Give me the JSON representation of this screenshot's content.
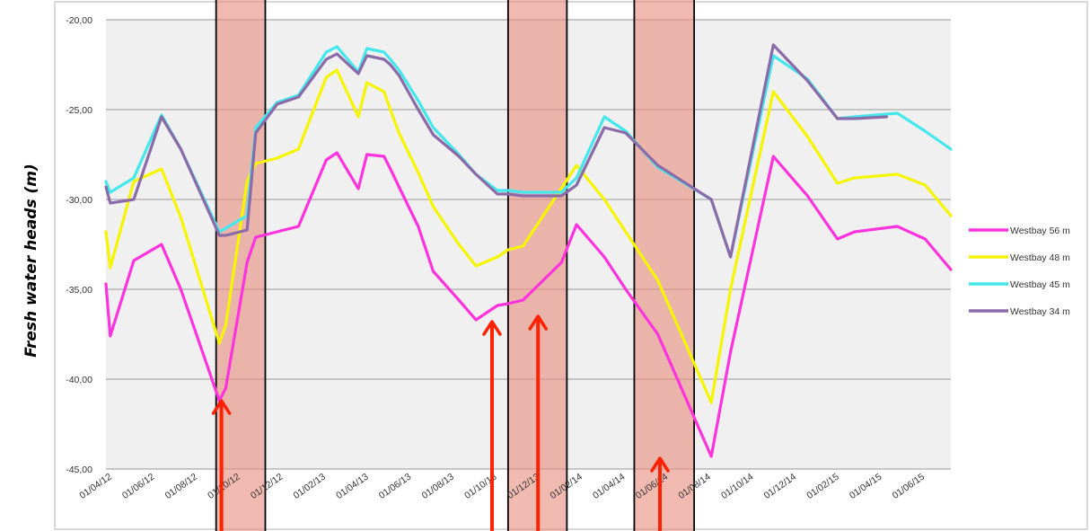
{
  "chart_data": {
    "type": "line",
    "ylabel": "Fresh water heads (m)",
    "ylim": [
      -45,
      -20
    ],
    "y_ticks": [
      "-20,00",
      "-25,00",
      "-30,00",
      "-35,00",
      "-40,00",
      "-45,00"
    ],
    "y_tick_values": [
      -20,
      -25,
      -30,
      -35,
      -40,
      -45
    ],
    "xlim": [
      0,
      39.5
    ],
    "x_tick_labels": [
      "01/04/12",
      "01/06/12",
      "01/08/12",
      "01/10/12",
      "01/12/12",
      "01/02/13",
      "01/04/13",
      "01/06/13",
      "01/08/13",
      "01/10/13",
      "01/12/13",
      "01/02/14",
      "01/04/14",
      "01/06/14",
      "01/08/14",
      "01/10/14",
      "01/12/14",
      "01/02/15",
      "01/04/15",
      "01/06/15"
    ],
    "x_tick_months": [
      0,
      2,
      4,
      6,
      8,
      10,
      12,
      14,
      16,
      18,
      20,
      22,
      24,
      26,
      28,
      30,
      32,
      34,
      36,
      38
    ],
    "grid": true,
    "legend_position": "right",
    "series": [
      {
        "name": "Westbay 56 m",
        "color": "#ff33dd",
        "x": [
          0,
          0.2,
          1.3,
          2.6,
          3.5,
          5.3,
          5.6,
          6.6,
          7.0,
          8.0,
          9.0,
          10.3,
          10.8,
          11.8,
          12.2,
          13.0,
          13.3,
          13.7,
          14.6,
          15.3,
          16.5,
          17.3,
          18.3,
          18.8,
          19.5,
          21.3,
          22.0,
          23.3,
          24.3,
          25.8,
          28.3,
          29.2,
          31.2,
          32.8,
          34.2,
          35.0,
          37.0,
          38.3,
          39.5
        ],
        "y": [
          -34.7,
          -37.6,
          -33.4,
          -32.5,
          -35.0,
          -41.2,
          -40.5,
          -33.5,
          -32.1,
          -31.8,
          -31.5,
          -27.8,
          -27.4,
          -29.4,
          -27.5,
          -27.6,
          -28.3,
          -29.3,
          -31.5,
          -34.0,
          -35.6,
          -36.7,
          -35.9,
          -35.8,
          -35.6,
          -33.5,
          -31.4,
          -33.2,
          -35.0,
          -37.5,
          -44.3,
          -38.5,
          -27.6,
          -29.8,
          -32.2,
          -31.8,
          -31.5,
          -32.2,
          -33.9
        ]
      },
      {
        "name": "Westbay 48 m",
        "color": "#f5f500",
        "x": [
          0,
          0.2,
          1.3,
          2.6,
          3.5,
          5.3,
          5.6,
          6.6,
          7.0,
          8.0,
          9.0,
          10.3,
          10.8,
          11.8,
          12.2,
          13.0,
          13.3,
          13.7,
          14.6,
          15.3,
          16.5,
          17.3,
          18.3,
          18.8,
          19.5,
          22.0,
          23.3,
          25.8,
          28.3,
          29.2,
          31.2,
          32.8,
          34.2,
          35.0,
          37.0,
          38.3,
          39.5
        ],
        "y": [
          -31.8,
          -33.8,
          -29.0,
          -28.3,
          -31.0,
          -38.0,
          -37.0,
          -29.0,
          -28.0,
          -27.7,
          -27.2,
          -23.2,
          -22.8,
          -25.4,
          -23.5,
          -24.0,
          -25.0,
          -26.3,
          -28.5,
          -30.4,
          -32.5,
          -33.7,
          -33.2,
          -32.8,
          -32.6,
          -28.1,
          -30.0,
          -34.5,
          -41.3,
          -35.0,
          -24.0,
          -26.5,
          -29.1,
          -28.8,
          -28.6,
          -29.2,
          -30.9
        ]
      },
      {
        "name": "Westbay 45 m",
        "color": "#44e8ec",
        "x": [
          0,
          0.2,
          1.3,
          2.6,
          3.5,
          5.3,
          5.6,
          6.6,
          7.0,
          8.0,
          9.0,
          10.3,
          10.8,
          11.8,
          12.2,
          13.0,
          13.3,
          13.7,
          14.6,
          15.3,
          16.5,
          17.3,
          18.3,
          18.8,
          19.5,
          21.3,
          22.0,
          23.3,
          24.3,
          25.8,
          28.3,
          29.2,
          31.2,
          32.8,
          34.2,
          35.0,
          37.0,
          38.3,
          39.5
        ],
        "y": [
          -29.0,
          -29.6,
          -28.8,
          -25.3,
          -27.2,
          -31.8,
          -31.6,
          -30.9,
          -26.0,
          -24.6,
          -24.2,
          -21.8,
          -21.5,
          -22.9,
          -21.6,
          -21.8,
          -22.2,
          -22.8,
          -24.5,
          -26.0,
          -27.5,
          -28.6,
          -29.5,
          -29.5,
          -29.6,
          -29.6,
          -28.8,
          -25.4,
          -26.2,
          -28.2,
          -30.0,
          -33.2,
          -22.0,
          -23.3,
          -25.5,
          -25.4,
          -25.2,
          -26.2,
          -27.2
        ]
      },
      {
        "name": "Westbay 34 m",
        "color": "#8b6aa8",
        "x": [
          0,
          0.2,
          1.3,
          2.6,
          3.5,
          5.3,
          5.6,
          6.6,
          7.0,
          8.0,
          9.0,
          10.3,
          10.8,
          11.8,
          12.2,
          13.0,
          13.3,
          13.7,
          14.6,
          15.3,
          16.5,
          17.3,
          18.3,
          18.8,
          19.5,
          21.3,
          22.0,
          23.3,
          24.3,
          25.8,
          28.3,
          29.2,
          31.2,
          32.8,
          34.2,
          35.0,
          36.5
        ],
        "y": [
          -29.3,
          -30.2,
          -30.0,
          -25.4,
          -27.2,
          -32.0,
          -32.0,
          -31.7,
          -26.3,
          -24.7,
          -24.3,
          -22.2,
          -21.9,
          -23.0,
          -22.0,
          -22.2,
          -22.5,
          -23.1,
          -25.0,
          -26.4,
          -27.6,
          -28.6,
          -29.7,
          -29.7,
          -29.8,
          -29.8,
          -29.2,
          -26.0,
          -26.3,
          -28.1,
          -30.0,
          -33.2,
          -21.4,
          -23.4,
          -25.5,
          -25.5,
          -25.4
        ]
      }
    ],
    "highlight_bands": [
      {
        "x_start": 5.15,
        "x_end": 7.45
      },
      {
        "x_start": 18.8,
        "x_end": 21.55
      },
      {
        "x_start": 24.7,
        "x_end": 27.5
      }
    ],
    "arrows": [
      {
        "x": 5.4,
        "y_tip": -41.2
      },
      {
        "x": 18.05,
        "y_tip": -36.8
      },
      {
        "x": 20.2,
        "y_tip": -36.5
      },
      {
        "x": 25.9,
        "y_tip": -44.4
      }
    ],
    "colors": {
      "plot_bg": "#f0f0f0",
      "grid": "#aaaaaa",
      "band": "#e88c7c",
      "arrow": "#ff2200",
      "frame": "#cccccc"
    }
  }
}
